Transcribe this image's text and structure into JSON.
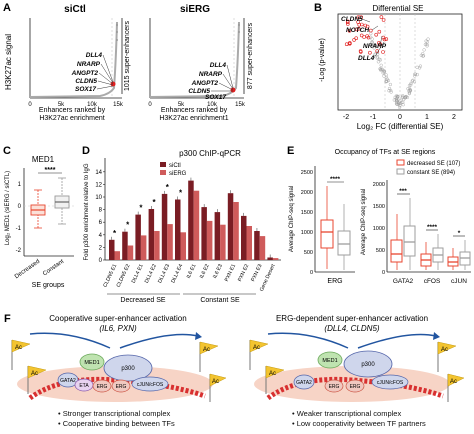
{
  "panelA": {
    "label": "A",
    "ylabel": "H3K27ac signal",
    "left": {
      "title": "siCtl",
      "xlabel_line1": "Enhancers ranked by",
      "xlabel_line2": "H3K27ac enrichment",
      "xticks": [
        "0",
        "5k",
        "10k",
        "15k"
      ],
      "genes": [
        "DLL4",
        "NRARP",
        "ANGPT2",
        "CLDN5",
        "SOX17"
      ],
      "se_label": "1015 super-enhancers"
    },
    "right": {
      "title": "siERG",
      "xlabel_line1": "Enhancers ranked by",
      "xlabel_line2": "H3K27ac enrichment1",
      "xticks": [
        "0",
        "5k",
        "10k",
        "15k"
      ],
      "genes": [
        "DLL4",
        "NRARP",
        "ANGPT2",
        "CLDN5",
        "SOX17"
      ],
      "se_label": "877 super-enhancers"
    }
  },
  "panelB": {
    "label": "B",
    "title": "Differential SE",
    "xlabel": "Log₂ FC (differential SE)",
    "ylabel": "-Log (p-value)",
    "xticks": [
      "-2",
      "-1",
      "0",
      "1",
      "2"
    ],
    "genes": [
      "CLDN5",
      "NOTCH",
      "NRARP",
      "DLL4"
    ]
  },
  "panelC": {
    "label": "C",
    "title": "MED1",
    "ylabel": "Log₂ MED1 (siERG / siCTL)",
    "yticks": [
      "1",
      "0",
      "-1",
      "-2"
    ],
    "categories": [
      "Decreased",
      "Constant"
    ],
    "xlabel": "SE groups",
    "significance": "****"
  },
  "panelD": {
    "label": "D",
    "title": "p300 ChIP-qPCR",
    "ylabel": "Fold p300 enrichment relative to IgG",
    "yticks": [
      "0",
      "2",
      "4",
      "6",
      "8",
      "10",
      "12",
      "14"
    ],
    "legend": [
      "siCtl",
      "siERG"
    ],
    "categories": [
      "CLDN5 E1",
      "CLDN5 E2",
      "DLL4 E1",
      "DLL4 E2",
      "DLL4 E3",
      "DLL4 E4",
      "IL6 E1",
      "IL6 E2",
      "IL6 E3",
      "PXN E1",
      "PXN E2",
      "PXN E3",
      "Gene Desert"
    ],
    "groups": [
      "Decreased SE",
      "Constant SE"
    ],
    "significance": [
      "*",
      "*",
      "*",
      "*",
      "*",
      "*"
    ],
    "colors": {
      "siCtl": "#7a1d24",
      "siERG": "#cf5b5b"
    }
  },
  "panelE": {
    "label": "E",
    "title": "Occupancy of TFs at SE regions",
    "ylabel": "Average ChIP-seq signal",
    "legend": [
      "decreased SE (107)",
      "constant SE (894)"
    ],
    "left_yticks": [
      "0",
      "500",
      "1000",
      "1500",
      "2000",
      "2500"
    ],
    "right_yticks": [
      "0",
      "500",
      "1000",
      "1500",
      "2000"
    ],
    "left_categories": [
      "ERG"
    ],
    "right_categories": [
      "GATA2",
      "cFOS",
      "cJUN"
    ],
    "significance": [
      "****",
      "***",
      "****",
      "*"
    ],
    "colors": {
      "decreased": "#e8462f",
      "constant": "#9e9e9e"
    }
  },
  "panelF": {
    "label": "F",
    "left": {
      "title_line1": "Cooperative super-enhancer activation",
      "title_line2": "(IL6, PXN)",
      "bullets": [
        "Stronger transcriptional complex",
        "Cooperative binding between TFs"
      ]
    },
    "right": {
      "title_line1": "ERG-dependent super-enhancer activation",
      "title_line2": "(DLL4, CLDN5)",
      "bullets": [
        "Weaker transcriptional complex",
        "Low cooperativity between TF partners"
      ]
    },
    "flag_label": "Ac",
    "proteins": [
      "MED1",
      "p300",
      "GATA2",
      "ETA",
      "ERG",
      "ERG",
      "cJUN/cFOS"
    ]
  }
}
